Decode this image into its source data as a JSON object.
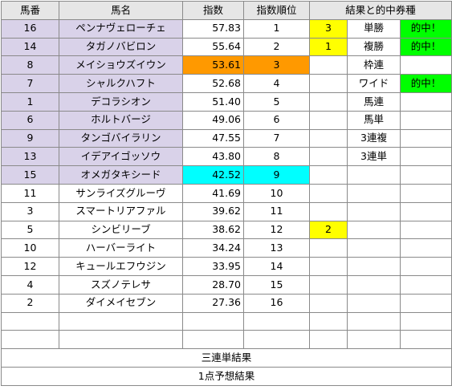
{
  "headers": {
    "number": "馬番",
    "name": "馬名",
    "index": "指数",
    "rank": "指数順位",
    "result": "結果と的中券種"
  },
  "rows": [
    {
      "number": "16",
      "name": "ペンナヴェローチェ",
      "index": "57.83",
      "rank": "1",
      "result": "3",
      "bet": "単勝",
      "hit": "的中！"
    },
    {
      "number": "14",
      "name": "タガノバビロン",
      "index": "55.64",
      "rank": "2",
      "result": "1",
      "bet": "複勝",
      "hit": "的中！"
    },
    {
      "number": "8",
      "name": "メイショウズイウン",
      "index": "53.61",
      "rank": "3",
      "result": "",
      "bet": "枠連",
      "hit": ""
    },
    {
      "number": "7",
      "name": "シャルクハフト",
      "index": "52.68",
      "rank": "4",
      "result": "",
      "bet": "ワイド",
      "hit": "的中！"
    },
    {
      "number": "1",
      "name": "デコラシオン",
      "index": "51.40",
      "rank": "5",
      "result": "",
      "bet": "馬連",
      "hit": ""
    },
    {
      "number": "6",
      "name": "ホルトバージ",
      "index": "49.06",
      "rank": "6",
      "result": "",
      "bet": "馬単",
      "hit": ""
    },
    {
      "number": "9",
      "name": "タンゴバイラリン",
      "index": "47.55",
      "rank": "7",
      "result": "",
      "bet": "3連複",
      "hit": ""
    },
    {
      "number": "13",
      "name": "イデアイゴッソウ",
      "index": "43.80",
      "rank": "8",
      "result": "",
      "bet": "3連単",
      "hit": ""
    },
    {
      "number": "15",
      "name": "オメガタキシード",
      "index": "42.52",
      "rank": "9",
      "result": "",
      "bet": "",
      "hit": ""
    },
    {
      "number": "11",
      "name": "サンライズグルーヴ",
      "index": "41.69",
      "rank": "10",
      "result": "",
      "bet": "",
      "hit": ""
    },
    {
      "number": "3",
      "name": "スマートリアファル",
      "index": "39.62",
      "rank": "11",
      "result": "",
      "bet": "",
      "hit": ""
    },
    {
      "number": "5",
      "name": "シンビリーブ",
      "index": "38.62",
      "rank": "12",
      "result": "2",
      "bet": "",
      "hit": ""
    },
    {
      "number": "10",
      "name": "ハーバーライト",
      "index": "34.24",
      "rank": "13",
      "result": "",
      "bet": "",
      "hit": ""
    },
    {
      "number": "12",
      "name": "キュールエフウジン",
      "index": "33.95",
      "rank": "14",
      "result": "",
      "bet": "",
      "hit": ""
    },
    {
      "number": "4",
      "name": "スズノテレサ",
      "index": "28.70",
      "rank": "15",
      "result": "",
      "bet": "",
      "hit": ""
    },
    {
      "number": "2",
      "name": "ダイメイセブン",
      "index": "27.36",
      "rank": "16",
      "result": "",
      "bet": "",
      "hit": ""
    }
  ],
  "footer": {
    "trifecta_result": "三連単結果",
    "one_point_prediction": "1点予想結果"
  },
  "colors": {
    "top_rank_highlight": "#d9d2e9",
    "orange_highlight": "#ff9900",
    "cyan_highlight": "#00ffff",
    "finish_position": "#ffff00",
    "hit": "#00ff00"
  }
}
